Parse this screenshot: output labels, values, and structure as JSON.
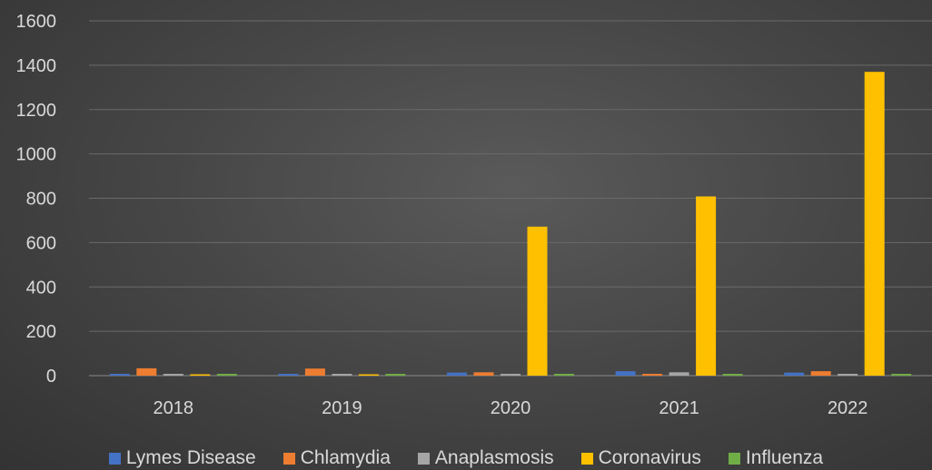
{
  "chart_data": {
    "type": "bar",
    "title": "",
    "xlabel": "",
    "ylabel": "",
    "categories": [
      "2018",
      "2019",
      "2020",
      "2021",
      "2022"
    ],
    "ylim": [
      0,
      1600
    ],
    "yticks": [
      0,
      200,
      400,
      600,
      800,
      1000,
      1200,
      1400,
      1600
    ],
    "grid": true,
    "legend_position": "bottom",
    "series": [
      {
        "name": "Lymes Disease",
        "color": "#4472c4",
        "values": [
          8,
          3,
          14,
          20,
          14
        ]
      },
      {
        "name": "Chlamydia",
        "color": "#ed7d31",
        "values": [
          33,
          32,
          15,
          3,
          20
        ]
      },
      {
        "name": "Anaplasmosis",
        "color": "#a5a5a5",
        "values": [
          1,
          1,
          2,
          15,
          2
        ]
      },
      {
        "name": "Coronavirus",
        "color": "#ffc000",
        "values": [
          0,
          0,
          672,
          808,
          1370
        ]
      },
      {
        "name": "Influenza",
        "color": "#70ad47",
        "values": [
          2,
          1,
          2,
          2,
          2
        ]
      }
    ]
  }
}
